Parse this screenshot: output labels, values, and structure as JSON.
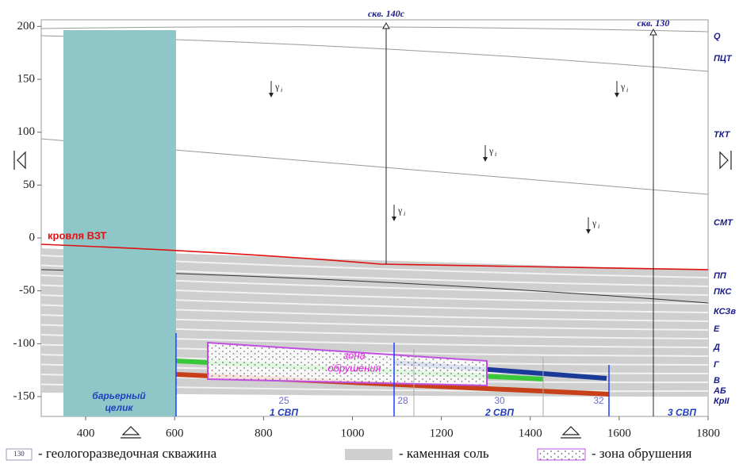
{
  "axes": {
    "xticks": [
      400,
      600,
      800,
      1000,
      1200,
      1400,
      1600,
      1800
    ],
    "yticks": [
      200,
      150,
      100,
      50,
      0,
      -50,
      -100,
      -150
    ]
  },
  "layers": [
    "Q",
    "ПЦТ",
    "ТКТ",
    "СМТ",
    "ПП",
    "ПКС",
    "КСЗв",
    "Е",
    "Д",
    "Г",
    "В",
    "АБ",
    "КрII"
  ],
  "boreholes": [
    "скв. 140с",
    "скв. 130"
  ],
  "roof_label": "кровля ВЗТ",
  "pillar_label": [
    "барьерный",
    "целик"
  ],
  "zone_label": [
    "зона",
    "обрушения"
  ],
  "panels": [
    "1 СВП",
    "2 СВП",
    "3 СВП"
  ],
  "panel_numbers": [
    "25",
    "28",
    "30",
    "32"
  ],
  "stress_symbol": "γ",
  "stress_index": "i",
  "legend": {
    "borehole_icon": "130",
    "borehole": "- геологоразведочная скважина",
    "salt": "- каменная соль",
    "zone": "- зона обрушения"
  }
}
